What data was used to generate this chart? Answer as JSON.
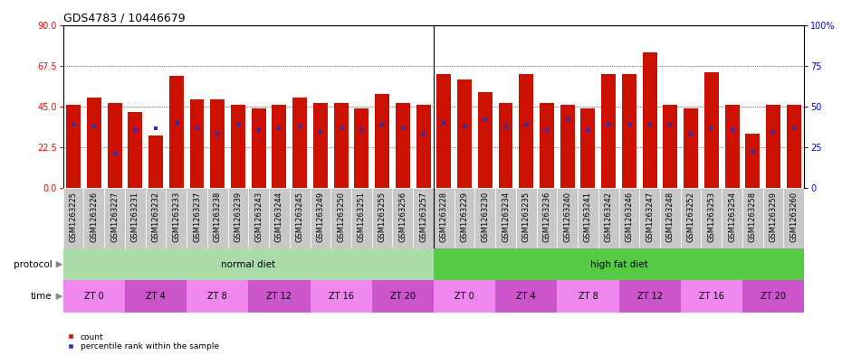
{
  "title": "GDS4783 / 10446679",
  "samples": [
    "GSM1263225",
    "GSM1263226",
    "GSM1263227",
    "GSM1263231",
    "GSM1263232",
    "GSM1263233",
    "GSM1263237",
    "GSM1263238",
    "GSM1263239",
    "GSM1263243",
    "GSM1263244",
    "GSM1263245",
    "GSM1263249",
    "GSM1263250",
    "GSM1263251",
    "GSM1263255",
    "GSM1263256",
    "GSM1263257",
    "GSM1263228",
    "GSM1263229",
    "GSM1263230",
    "GSM1263234",
    "GSM1263235",
    "GSM1263236",
    "GSM1263240",
    "GSM1263241",
    "GSM1263242",
    "GSM1263246",
    "GSM1263247",
    "GSM1263248",
    "GSM1263252",
    "GSM1263253",
    "GSM1263254",
    "GSM1263258",
    "GSM1263259",
    "GSM1263260"
  ],
  "bar_heights": [
    46,
    50,
    47,
    42,
    29,
    62,
    49,
    49,
    46,
    44,
    46,
    50,
    47,
    47,
    44,
    52,
    47,
    46,
    63,
    60,
    53,
    47,
    63,
    47,
    46,
    44,
    63,
    63,
    75,
    46,
    44,
    64,
    46,
    30,
    46,
    46
  ],
  "blue_dots": [
    35,
    34,
    19,
    32,
    33,
    36,
    33,
    30,
    35,
    32,
    33,
    34,
    31,
    33,
    32,
    35,
    33,
    30,
    36,
    34,
    38,
    34,
    35,
    32,
    38,
    32,
    35,
    35,
    35,
    35,
    30,
    33,
    32,
    20,
    31,
    33
  ],
  "yticks_left": [
    0,
    22.5,
    45,
    67.5,
    90
  ],
  "yticks_right": [
    0,
    25,
    50,
    75,
    100
  ],
  "bar_color": "#CC1100",
  "blue_color": "#2233BB",
  "normal_diet_color": "#AADDAA",
  "high_fat_diet_color": "#55CC44",
  "zt_pink_color": "#EE88EE",
  "zt_magenta_color": "#CC55CC",
  "xtick_bg": "#CCCCCC",
  "xtick_cell_bg": "#BBBBBB",
  "label_fontsize": 7.5,
  "tick_fontsize": 6.0,
  "title_fontsize": 9,
  "time_labels": [
    "ZT 0",
    "ZT 4",
    "ZT 8",
    "ZT 12",
    "ZT 16",
    "ZT 20",
    "ZT 0",
    "ZT 4",
    "ZT 8",
    "ZT 12",
    "ZT 16",
    "ZT 20"
  ],
  "time_ranges": [
    [
      0,
      3
    ],
    [
      3,
      6
    ],
    [
      6,
      9
    ],
    [
      9,
      12
    ],
    [
      12,
      15
    ],
    [
      15,
      18
    ],
    [
      18,
      21
    ],
    [
      21,
      24
    ],
    [
      24,
      27
    ],
    [
      27,
      30
    ],
    [
      30,
      33
    ],
    [
      33,
      36
    ]
  ]
}
